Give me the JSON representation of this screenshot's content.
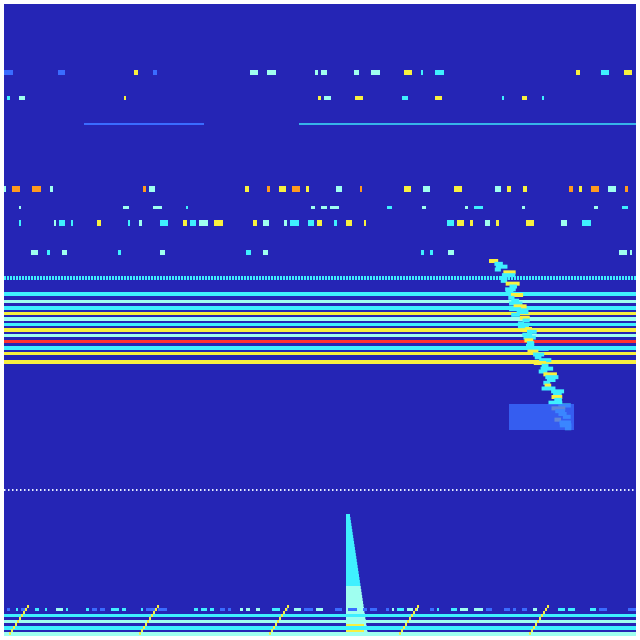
{
  "image": {
    "kind": "spectrogram-heatmap",
    "colormap": "jet",
    "colors": {
      "background": "#2525b5",
      "cyan": "#3ff0ff",
      "light_cyan": "#9ffff0",
      "yellow": "#f8f040",
      "orange": "#ff9a20",
      "red": "#ff3030",
      "blue": "#3a6cff",
      "white": "#e8f0ff"
    }
  }
}
